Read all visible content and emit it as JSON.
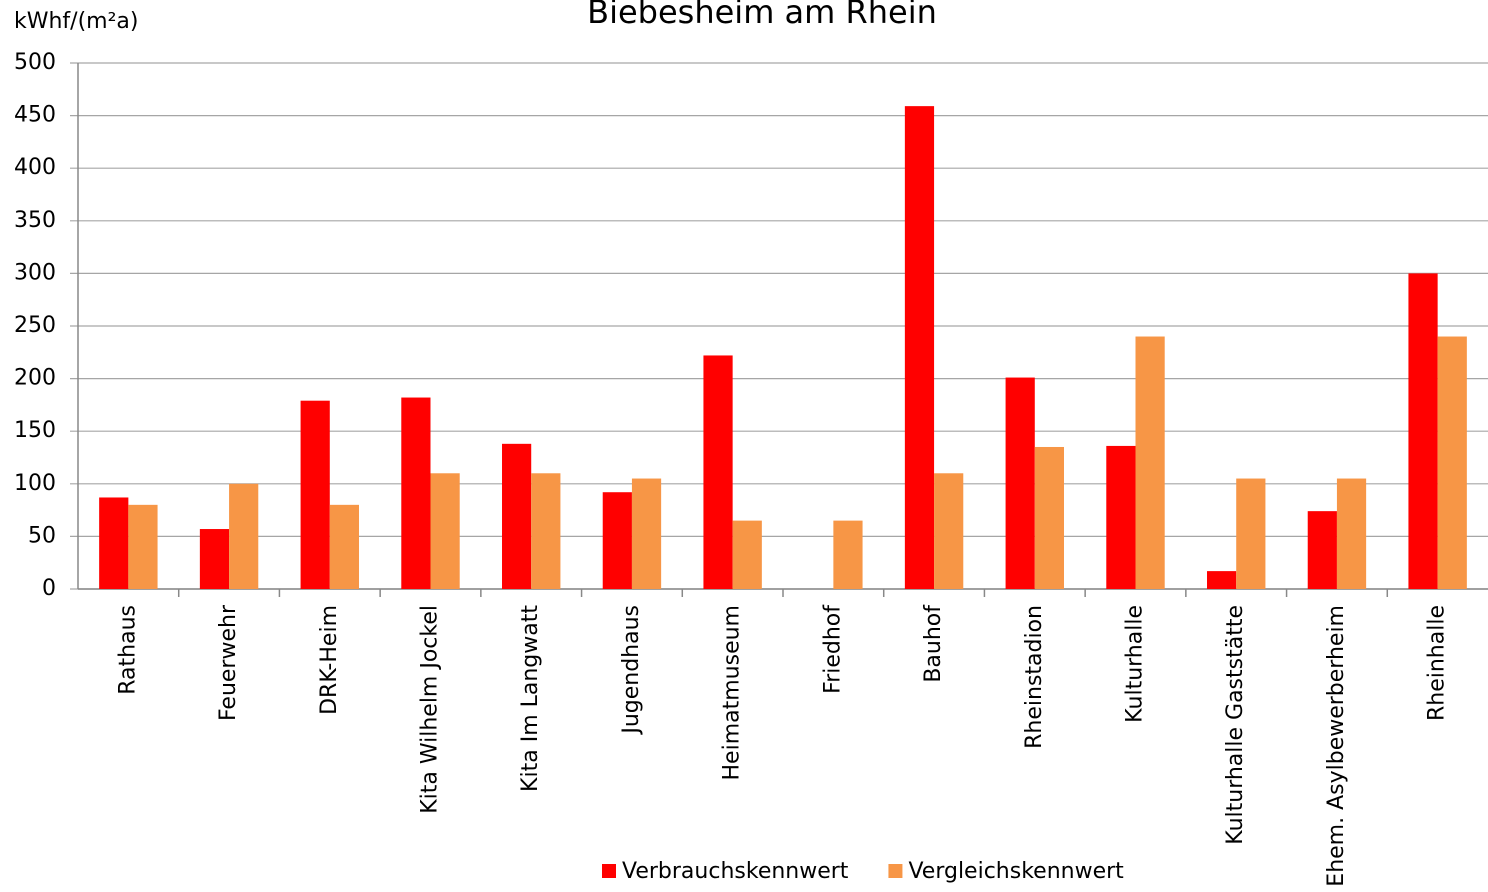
{
  "chart_data": {
    "type": "bar",
    "title": "Biebesheim am Rhein",
    "y_label": "kWhf/(m²a)",
    "categories": [
      "Rathaus",
      "Feuerwehr",
      "DRK-Heim",
      "Kita Wilhelm Jockel",
      "Kita Im Langwatt",
      "Jugendhaus",
      "Heimatmuseum",
      "Friedhof",
      "Bauhof",
      "Rheinstadion",
      "Kulturhalle",
      "Kulturhalle Gaststätte",
      "Ehem. Asylbewerberheim",
      "Rheinhalle"
    ],
    "series": [
      {
        "name": "Verbrauchskennwert",
        "color": "#ff0000",
        "values": [
          87,
          57,
          179,
          182,
          138,
          92,
          222,
          null,
          459,
          201,
          136,
          17,
          74,
          300
        ]
      },
      {
        "name": "Vergleichskennwert",
        "color": "#f79646",
        "values": [
          80,
          100,
          80,
          110,
          110,
          105,
          65,
          65,
          110,
          135,
          240,
          105,
          105,
          240
        ]
      }
    ],
    "ylim": [
      0,
      500
    ],
    "yticks": [
      0,
      50,
      100,
      150,
      200,
      250,
      300,
      350,
      400,
      450,
      500
    ],
    "grid": true,
    "legend": "bottom"
  }
}
